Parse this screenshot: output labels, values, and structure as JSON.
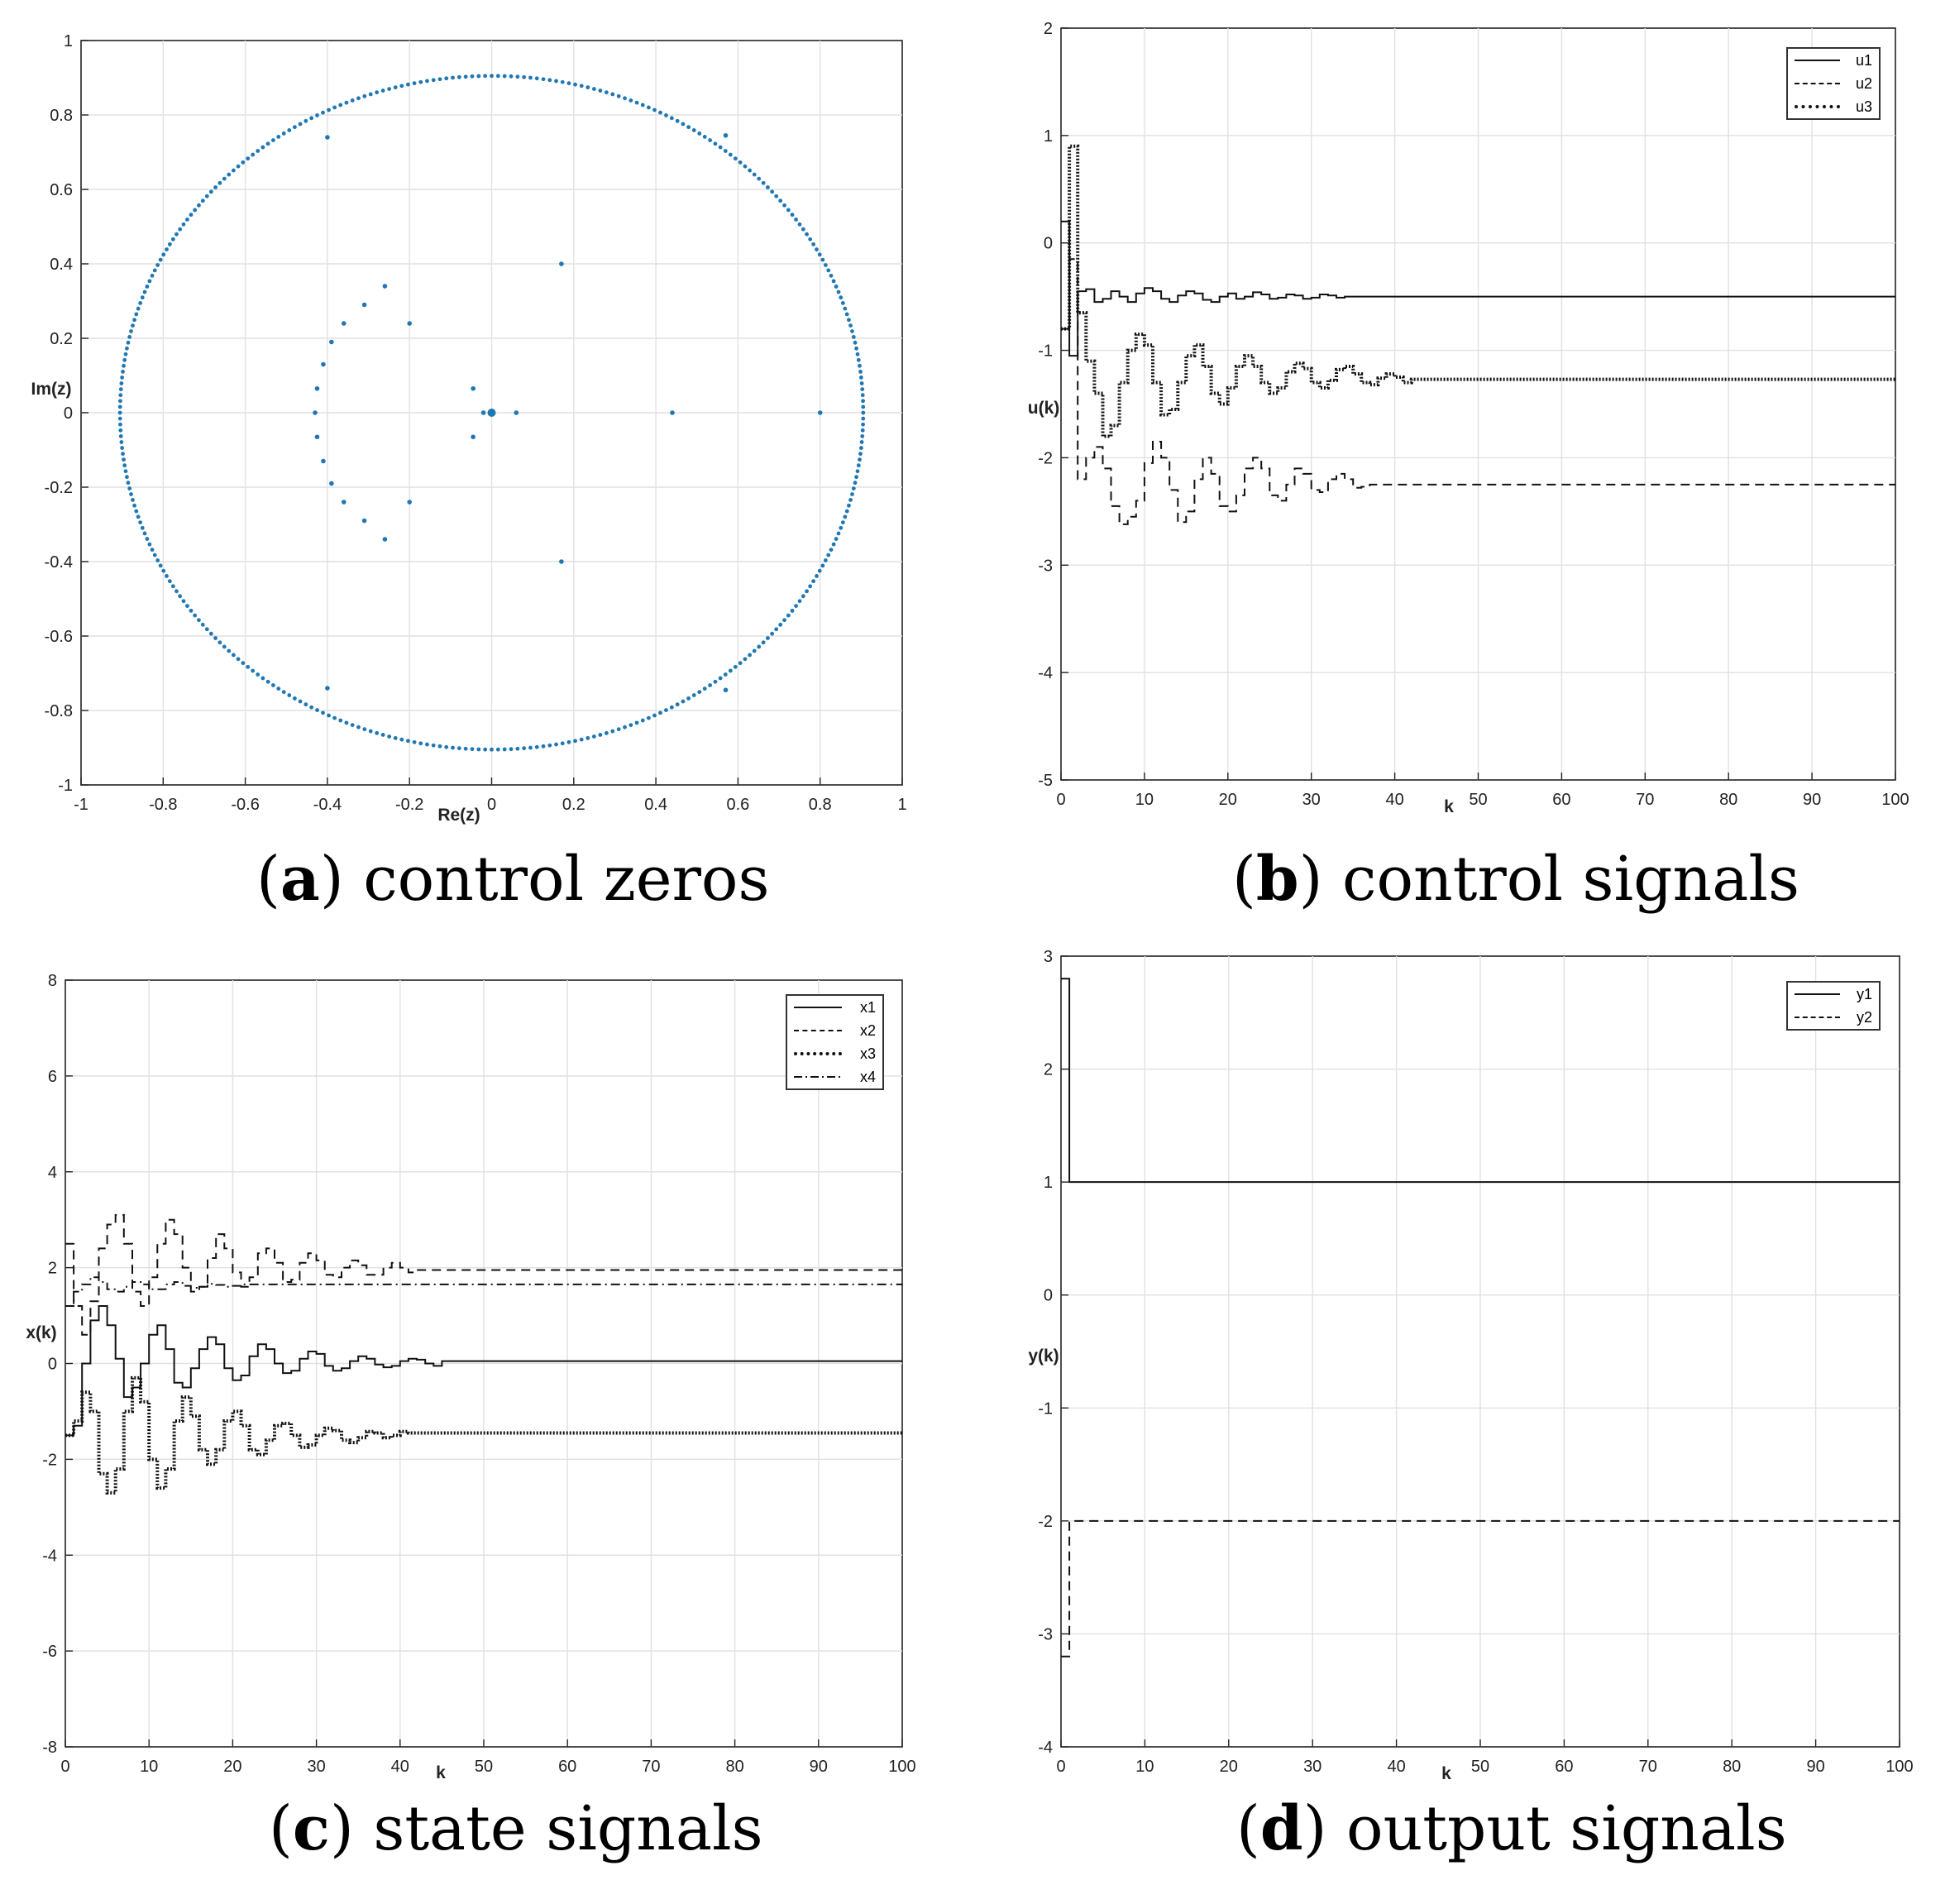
{
  "chart_data": [
    {
      "id": "a",
      "type": "scatter",
      "xlabel": "Re(z)",
      "ylabel": "Im(z)",
      "xlim": [
        -1,
        1
      ],
      "ylim": [
        -1,
        1
      ],
      "xticks": [
        "-1",
        "-0.8",
        "-0.6",
        "-0.4",
        "-0.2",
        "0",
        "0.2",
        "0.4",
        "0.6",
        "0.8",
        "1"
      ],
      "yticks": [
        "1",
        "0.8",
        "0.6",
        "0.4",
        "0.2",
        "0",
        "-0.2",
        "-0.4",
        "-0.6",
        "-0.8",
        "-1"
      ],
      "grid": true,
      "color": "#1f77b4",
      "circle": {
        "radius": 0.905,
        "points": 360
      },
      "points": [
        [
          -0.4,
          0.74
        ],
        [
          -0.4,
          -0.74
        ],
        [
          0.57,
          0.745
        ],
        [
          0.57,
          -0.745
        ],
        [
          0.17,
          0.4
        ],
        [
          0.17,
          -0.4
        ],
        [
          -0.26,
          0.34
        ],
        [
          -0.26,
          -0.34
        ],
        [
          -0.31,
          0.29
        ],
        [
          -0.31,
          -0.29
        ],
        [
          -0.36,
          0.24
        ],
        [
          -0.36,
          -0.24
        ],
        [
          -0.39,
          0.19
        ],
        [
          -0.39,
          -0.19
        ],
        [
          -0.41,
          0.13
        ],
        [
          -0.41,
          -0.13
        ],
        [
          -0.425,
          0.065
        ],
        [
          -0.425,
          -0.065
        ],
        [
          -0.43,
          0.0
        ],
        [
          -0.2,
          0.24
        ],
        [
          -0.2,
          -0.24
        ],
        [
          -0.045,
          0.065
        ],
        [
          -0.045,
          -0.065
        ],
        [
          -0.02,
          0.0
        ],
        [
          0.06,
          0.0
        ],
        [
          0.44,
          0.0
        ],
        [
          0.8,
          0.0
        ]
      ],
      "big_point": [
        0.0,
        0.0
      ]
    },
    {
      "id": "b",
      "type": "line",
      "xlabel": "k",
      "ylabel": "u(k)",
      "xlim": [
        0,
        100
      ],
      "ylim": [
        -5,
        2
      ],
      "xticks": [
        "0",
        "10",
        "20",
        "30",
        "40",
        "50",
        "60",
        "70",
        "80",
        "90",
        "100"
      ],
      "yticks": [
        "2",
        "1",
        "0",
        "-1",
        "-2",
        "-3",
        "-4",
        "-5"
      ],
      "grid": true,
      "legend_position": "top-right",
      "series": [
        {
          "name": "u1",
          "style": "solid",
          "step_values": [
            0.2,
            -1.05,
            -0.45,
            -0.43,
            -0.55,
            -0.52,
            -0.45,
            -0.5,
            -0.55,
            -0.47,
            -0.42,
            -0.45,
            -0.52,
            -0.55,
            -0.49,
            -0.45,
            -0.47,
            -0.53,
            -0.55,
            -0.5,
            -0.47,
            -0.52,
            -0.5,
            -0.46,
            -0.48,
            -0.52,
            -0.51,
            -0.48,
            -0.49,
            -0.52,
            -0.51,
            -0.48,
            -0.49,
            -0.51
          ],
          "final": -0.5
        },
        {
          "name": "u2",
          "style": "dashed",
          "step_values": [
            -0.8,
            -0.15,
            -2.2,
            -2.0,
            -1.9,
            -2.1,
            -2.45,
            -2.62,
            -2.55,
            -2.4,
            -2.05,
            -1.85,
            -2.0,
            -2.3,
            -2.6,
            -2.5,
            -2.2,
            -2.0,
            -2.15,
            -2.45,
            -2.5,
            -2.35,
            -2.1,
            -2.0,
            -2.1,
            -2.35,
            -2.4,
            -2.25,
            -2.1,
            -2.15,
            -2.3,
            -2.32,
            -2.2,
            -2.15,
            -2.2,
            -2.28,
            -2.27
          ],
          "final": -2.25
        },
        {
          "name": "u3",
          "style": "dotted",
          "step_values": [
            -0.8,
            0.9,
            -0.65,
            -1.1,
            -1.4,
            -1.8,
            -1.7,
            -1.3,
            -1.0,
            -0.85,
            -0.95,
            -1.3,
            -1.6,
            -1.55,
            -1.3,
            -1.05,
            -0.95,
            -1.15,
            -1.4,
            -1.5,
            -1.35,
            -1.15,
            -1.05,
            -1.15,
            -1.3,
            -1.4,
            -1.35,
            -1.2,
            -1.12,
            -1.17,
            -1.3,
            -1.35,
            -1.28,
            -1.18,
            -1.15,
            -1.22,
            -1.3,
            -1.32,
            -1.26,
            -1.22,
            -1.25,
            -1.3
          ],
          "final": -1.27
        }
      ]
    },
    {
      "id": "c",
      "type": "line",
      "xlabel": "k",
      "ylabel": "x(k)",
      "xlim": [
        0,
        100
      ],
      "ylim": [
        -8,
        8
      ],
      "xticks": [
        "0",
        "10",
        "20",
        "30",
        "40",
        "50",
        "60",
        "70",
        "80",
        "90",
        "100"
      ],
      "yticks": [
        "8",
        "6",
        "4",
        "2",
        "0",
        "-2",
        "-4",
        "-6",
        "-8"
      ],
      "grid": true,
      "legend_position": "top-right",
      "series": [
        {
          "name": "x1",
          "style": "solid",
          "step_values": [
            -1.5,
            -1.3,
            0.0,
            0.9,
            1.2,
            0.8,
            0.1,
            -0.7,
            -0.5,
            0.0,
            0.6,
            0.8,
            0.3,
            -0.4,
            -0.5,
            -0.1,
            0.3,
            0.55,
            0.4,
            -0.1,
            -0.35,
            -0.25,
            0.15,
            0.4,
            0.3,
            0.0,
            -0.2,
            -0.15,
            0.1,
            0.25,
            0.2,
            -0.05,
            -0.15,
            -0.1,
            0.05,
            0.15,
            0.1,
            -0.02,
            -0.08,
            -0.05,
            0.05,
            0.1,
            0.08,
            0.0,
            -0.05
          ],
          "final": 0.05
        },
        {
          "name": "x2",
          "style": "dashed",
          "step_values": [
            2.5,
            1.2,
            0.6,
            1.3,
            2.4,
            2.9,
            3.1,
            2.5,
            1.5,
            1.2,
            1.8,
            2.5,
            3.0,
            2.7,
            2.0,
            1.5,
            1.6,
            2.2,
            2.7,
            2.4,
            1.9,
            1.6,
            1.8,
            2.3,
            2.4,
            2.1,
            1.7,
            1.75,
            2.1,
            2.3,
            2.15,
            1.85,
            1.8,
            2.0,
            2.15,
            2.05,
            1.85,
            1.85,
            2.0,
            2.1,
            2.0,
            1.9,
            1.95
          ],
          "final": 1.95
        },
        {
          "name": "x3",
          "style": "dotted",
          "step_values": [
            -1.5,
            -1.2,
            -0.6,
            -1.0,
            -2.3,
            -2.7,
            -2.2,
            -1.0,
            -0.3,
            -0.8,
            -2.0,
            -2.6,
            -2.2,
            -1.2,
            -0.7,
            -1.1,
            -1.8,
            -2.1,
            -1.8,
            -1.2,
            -1.0,
            -1.3,
            -1.8,
            -1.9,
            -1.6,
            -1.3,
            -1.25,
            -1.5,
            -1.75,
            -1.7,
            -1.5,
            -1.35,
            -1.4,
            -1.6,
            -1.65,
            -1.55,
            -1.42,
            -1.45,
            -1.55,
            -1.5,
            -1.42,
            -1.45
          ],
          "final": -1.45
        },
        {
          "name": "x4",
          "style": "dashdot",
          "step_values": [
            1.2,
            1.5,
            1.65,
            1.8,
            1.7,
            1.55,
            1.5,
            1.6,
            1.7,
            1.65,
            1.55,
            1.55,
            1.65,
            1.7,
            1.62,
            1.58,
            1.6,
            1.66,
            1.64,
            1.6,
            1.62,
            1.65
          ],
          "final": 1.65
        }
      ]
    },
    {
      "id": "d",
      "type": "line",
      "xlabel": "k",
      "ylabel": "y(k)",
      "xlim": [
        0,
        100
      ],
      "ylim": [
        -4,
        3
      ],
      "xticks": [
        "0",
        "10",
        "20",
        "30",
        "40",
        "50",
        "60",
        "70",
        "80",
        "90",
        "100"
      ],
      "yticks": [
        "3",
        "2",
        "1",
        "0",
        "-1",
        "-2",
        "-3",
        "-4"
      ],
      "grid": true,
      "legend_position": "top-right",
      "series": [
        {
          "name": "y1",
          "style": "solid",
          "step_values": [
            2.8
          ],
          "final": 1.0
        },
        {
          "name": "y2",
          "style": "dashed",
          "step_values": [
            -3.2
          ],
          "final": -2.0
        }
      ]
    }
  ],
  "captions": {
    "a": {
      "letter": "a",
      "text": "control zeros"
    },
    "b": {
      "letter": "b",
      "text": "control signals"
    },
    "c": {
      "letter": "c",
      "text": "state signals"
    },
    "d": {
      "letter": "d",
      "text": "output signals"
    }
  },
  "caption_paren_open": "(",
  "caption_paren_close": ")"
}
